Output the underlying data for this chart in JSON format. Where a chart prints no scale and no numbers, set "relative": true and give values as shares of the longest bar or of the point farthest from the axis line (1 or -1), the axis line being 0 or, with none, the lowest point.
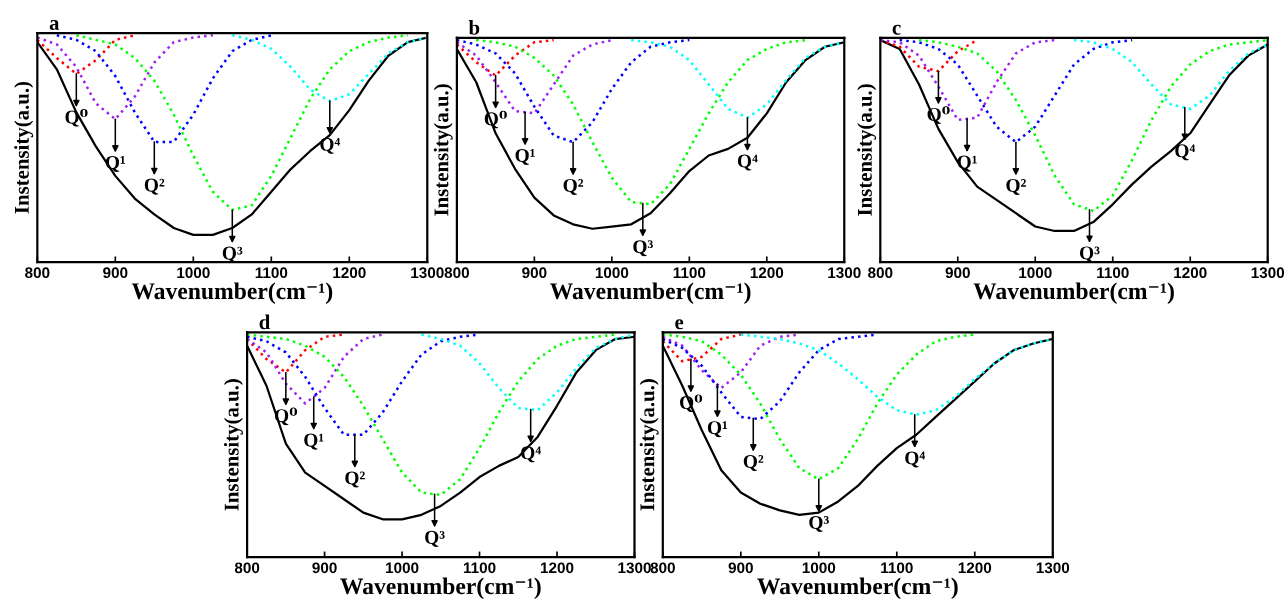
{
  "chart_data": [
    {
      "type": "line",
      "relative": true,
      "title": "a",
      "xlabel": "Wavenumber(cm⁻¹)",
      "ylabel": "Instensity(a.u.)",
      "xlim": [
        800,
        1300
      ],
      "xticks": [
        800,
        900,
        1000,
        1100,
        1200,
        1300
      ],
      "x": [
        800,
        825,
        850,
        875,
        900,
        925,
        950,
        975,
        1000,
        1025,
        1050,
        1075,
        1100,
        1125,
        1150,
        1175,
        1200,
        1225,
        1250,
        1275,
        1300
      ],
      "series": [
        {
          "color": "#000000",
          "line_style": "solid",
          "values": [
            0.97,
            0.85,
            0.66,
            0.51,
            0.38,
            0.28,
            0.21,
            0.15,
            0.12,
            0.12,
            0.15,
            0.21,
            0.31,
            0.41,
            0.49,
            0.56,
            0.67,
            0.8,
            0.91,
            0.97,
            0.99
          ]
        },
        {
          "color": "#ff0000",
          "line_style": "dotted",
          "values": [
            0.98,
            0.9,
            0.83,
            0.89,
            0.98,
            1.0,
            null,
            null,
            null,
            null,
            null,
            null,
            null,
            null,
            null,
            null,
            null,
            null,
            null,
            null,
            null
          ]
        },
        {
          "color": "#a020f0",
          "line_style": "dotted",
          "values": [
            0.99,
            0.96,
            0.86,
            0.7,
            0.63,
            0.73,
            0.88,
            0.97,
            0.99,
            1.0,
            null,
            null,
            null,
            null,
            null,
            null,
            null,
            null,
            null,
            null,
            null
          ]
        },
        {
          "color": "#0000ff",
          "line_style": "dotted",
          "values": [
            null,
            1.0,
            0.98,
            0.93,
            0.82,
            0.66,
            0.53,
            0.53,
            0.65,
            0.81,
            0.93,
            0.98,
            1.0,
            null,
            null,
            null,
            null,
            null,
            null,
            null,
            null
          ]
        },
        {
          "color": "#00ff00",
          "line_style": "dotted",
          "values": [
            null,
            null,
            1.0,
            0.98,
            0.96,
            0.9,
            0.8,
            0.65,
            0.47,
            0.31,
            0.23,
            0.25,
            0.38,
            0.55,
            0.72,
            0.85,
            0.93,
            0.97,
            0.99,
            1.0,
            null
          ]
        },
        {
          "color": "#00ffff",
          "line_style": "dotted",
          "values": [
            null,
            null,
            null,
            null,
            null,
            null,
            null,
            null,
            null,
            null,
            1.0,
            0.98,
            0.94,
            0.86,
            0.76,
            0.71,
            0.74,
            0.83,
            0.92,
            0.97,
            0.99
          ]
        }
      ],
      "annotations": [
        {
          "text": "Q⁰",
          "x": 850,
          "y": 0.83
        },
        {
          "text": "Q¹",
          "x": 900,
          "y": 0.63
        },
        {
          "text": "Q²",
          "x": 950,
          "y": 0.53
        },
        {
          "text": "Q³",
          "x": 1050,
          "y": 0.23
        },
        {
          "text": "Q⁴",
          "x": 1175,
          "y": 0.71
        }
      ]
    },
    {
      "type": "line",
      "relative": true,
      "title": "b",
      "xlabel": "Wavenumber(cm⁻¹)",
      "ylabel": "Instensity(a.u.)",
      "xlim": [
        800,
        1300
      ],
      "xticks": [
        800,
        900,
        1000,
        1100,
        1200,
        1300
      ],
      "x": [
        800,
        825,
        850,
        875,
        900,
        925,
        950,
        975,
        1000,
        1025,
        1050,
        1075,
        1100,
        1125,
        1150,
        1175,
        1200,
        1225,
        1250,
        1275,
        1300
      ],
      "series": [
        {
          "color": "#000000",
          "line_style": "solid",
          "values": [
            0.96,
            0.81,
            0.58,
            0.42,
            0.29,
            0.21,
            0.17,
            0.15,
            0.16,
            0.17,
            0.22,
            0.31,
            0.41,
            0.48,
            0.51,
            0.56,
            0.67,
            0.81,
            0.91,
            0.97,
            0.99
          ]
        },
        {
          "color": "#ff0000",
          "line_style": "dotted",
          "values": [
            0.98,
            0.9,
            0.84,
            0.93,
            0.99,
            1.0,
            null,
            null,
            null,
            null,
            null,
            null,
            null,
            null,
            null,
            null,
            null,
            null,
            null,
            null,
            null
          ]
        },
        {
          "color": "#a020f0",
          "line_style": "dotted",
          "values": [
            0.99,
            0.93,
            0.81,
            0.68,
            0.67,
            0.8,
            0.93,
            0.98,
            1.0,
            null,
            null,
            null,
            null,
            null,
            null,
            null,
            null,
            null,
            null,
            null,
            null
          ]
        },
        {
          "color": "#0000ff",
          "line_style": "dotted",
          "values": [
            1.0,
            0.98,
            0.94,
            0.85,
            0.7,
            0.57,
            0.54,
            0.63,
            0.78,
            0.9,
            0.97,
            0.99,
            1.0,
            null,
            null,
            null,
            null,
            null,
            null,
            null,
            null
          ]
        },
        {
          "color": "#00ff00",
          "line_style": "dotted",
          "values": [
            null,
            1.0,
            0.99,
            0.97,
            0.92,
            0.84,
            0.71,
            0.54,
            0.38,
            0.27,
            0.26,
            0.35,
            0.51,
            0.67,
            0.81,
            0.91,
            0.96,
            0.99,
            1.0,
            null,
            null
          ]
        },
        {
          "color": "#00ffff",
          "line_style": "dotted",
          "values": [
            null,
            null,
            null,
            null,
            null,
            null,
            null,
            null,
            null,
            1.0,
            0.99,
            0.97,
            0.91,
            0.8,
            0.69,
            0.65,
            0.71,
            0.82,
            0.92,
            0.97,
            0.99
          ]
        }
      ],
      "annotations": [
        {
          "text": "Q⁰",
          "x": 850,
          "y": 0.84
        },
        {
          "text": "Q¹",
          "x": 888,
          "y": 0.675
        },
        {
          "text": "Q²",
          "x": 950,
          "y": 0.54
        },
        {
          "text": "Q³",
          "x": 1040,
          "y": 0.264
        },
        {
          "text": "Q⁴",
          "x": 1175,
          "y": 0.65
        }
      ]
    },
    {
      "type": "line",
      "relative": true,
      "title": "c",
      "xlabel": "Wavenumber(cm⁻¹)",
      "ylabel": "Instensity(a.u.)",
      "xlim": [
        800,
        1300
      ],
      "xticks": [
        800,
        900,
        1000,
        1100,
        1200,
        1300
      ],
      "x": [
        800,
        825,
        850,
        875,
        900,
        925,
        950,
        975,
        1000,
        1025,
        1050,
        1075,
        1100,
        1125,
        1150,
        1175,
        1200,
        1225,
        1250,
        1275,
        1300
      ],
      "series": [
        {
          "color": "#000000",
          "line_style": "solid",
          "values": [
            1.0,
            0.96,
            0.8,
            0.6,
            0.45,
            0.34,
            0.28,
            0.22,
            0.16,
            0.14,
            0.14,
            0.18,
            0.26,
            0.35,
            0.43,
            0.5,
            0.58,
            0.71,
            0.84,
            0.93,
            0.98
          ]
        },
        {
          "color": "#ff0000",
          "line_style": "dotted",
          "values": [
            1.0,
            0.97,
            0.88,
            0.86,
            0.95,
            1.0,
            null,
            null,
            null,
            null,
            null,
            null,
            null,
            null,
            null,
            null,
            null,
            null,
            null,
            null,
            null
          ]
        },
        {
          "color": "#a020f0",
          "line_style": "dotted",
          "values": [
            1.0,
            0.99,
            0.93,
            0.79,
            0.64,
            0.65,
            0.81,
            0.94,
            0.99,
            1.0,
            null,
            null,
            null,
            null,
            null,
            null,
            null,
            null,
            null,
            null,
            null
          ]
        },
        {
          "color": "#0000ff",
          "line_style": "dotted",
          "values": [
            null,
            1.0,
            0.99,
            0.96,
            0.89,
            0.75,
            0.61,
            0.54,
            0.61,
            0.75,
            0.89,
            0.96,
            0.99,
            1.0,
            null,
            null,
            null,
            null,
            null,
            null,
            null
          ]
        },
        {
          "color": "#00ff00",
          "line_style": "dotted",
          "values": [
            null,
            null,
            1.0,
            0.99,
            0.97,
            0.94,
            0.86,
            0.73,
            0.57,
            0.39,
            0.26,
            0.23,
            0.3,
            0.46,
            0.64,
            0.79,
            0.89,
            0.95,
            0.98,
            0.99,
            1.0
          ]
        },
        {
          "color": "#00ffff",
          "line_style": "dotted",
          "values": [
            null,
            null,
            null,
            null,
            null,
            null,
            null,
            null,
            null,
            null,
            1.0,
            0.99,
            0.96,
            0.9,
            0.8,
            0.71,
            0.69,
            0.75,
            0.86,
            0.94,
            0.98
          ]
        }
      ],
      "annotations": [
        {
          "text": "Q⁰",
          "x": 875,
          "y": 0.86
        },
        {
          "text": "Q¹",
          "x": 912,
          "y": 0.645
        },
        {
          "text": "Q²",
          "x": 975,
          "y": 0.54
        },
        {
          "text": "Q³",
          "x": 1070,
          "y": 0.236
        },
        {
          "text": "Q⁴",
          "x": 1193,
          "y": 0.696
        }
      ]
    },
    {
      "type": "line",
      "relative": true,
      "title": "d",
      "xlabel": "Wavenumber(cm⁻¹)",
      "ylabel": "Instensity(a.u.)",
      "xlim": [
        800,
        1300
      ],
      "xticks": [
        800,
        900,
        1000,
        1100,
        1200,
        1300
      ],
      "x": [
        800,
        825,
        850,
        875,
        900,
        925,
        950,
        975,
        1000,
        1025,
        1050,
        1075,
        1100,
        1125,
        1150,
        1175,
        1200,
        1225,
        1250,
        1275,
        1300
      ],
      "series": [
        {
          "color": "#000000",
          "line_style": "solid",
          "values": [
            0.95,
            0.77,
            0.51,
            0.38,
            0.32,
            0.26,
            0.2,
            0.17,
            0.17,
            0.19,
            0.23,
            0.29,
            0.36,
            0.41,
            0.45,
            0.54,
            0.68,
            0.83,
            0.93,
            0.98,
            0.99
          ]
        },
        {
          "color": "#ff0000",
          "line_style": "dotted",
          "values": [
            0.98,
            0.89,
            0.83,
            0.93,
            0.99,
            1.0,
            null,
            null,
            null,
            null,
            null,
            null,
            null,
            null,
            null,
            null,
            null,
            null,
            null,
            null,
            null
          ]
        },
        {
          "color": "#a020f0",
          "line_style": "dotted",
          "values": [
            0.98,
            0.92,
            0.78,
            0.69,
            0.76,
            0.9,
            0.98,
            1.0,
            null,
            null,
            null,
            null,
            null,
            null,
            null,
            null,
            null,
            null,
            null,
            null,
            null
          ]
        },
        {
          "color": "#0000ff",
          "line_style": "dotted",
          "values": [
            0.99,
            0.97,
            0.92,
            0.81,
            0.67,
            0.55,
            0.55,
            0.65,
            0.79,
            0.91,
            0.97,
            0.99,
            1.0,
            null,
            null,
            null,
            null,
            null,
            null,
            null,
            null
          ]
        },
        {
          "color": "#00ff00",
          "line_style": "dotted",
          "values": [
            1.0,
            0.99,
            0.98,
            0.95,
            0.9,
            0.81,
            0.68,
            0.53,
            0.38,
            0.29,
            0.28,
            0.35,
            0.49,
            0.65,
            0.79,
            0.89,
            0.95,
            0.98,
            0.99,
            1.0,
            null
          ]
        },
        {
          "color": "#00ffff",
          "line_style": "dotted",
          "values": [
            null,
            null,
            null,
            null,
            null,
            null,
            null,
            null,
            null,
            1.0,
            0.98,
            0.95,
            0.87,
            0.76,
            0.67,
            0.66,
            0.74,
            0.85,
            0.94,
            0.98,
            1.0
          ]
        }
      ],
      "annotations": [
        {
          "text": "Q⁰",
          "x": 850,
          "y": 0.83
        },
        {
          "text": "Q¹",
          "x": 886,
          "y": 0.72
        },
        {
          "text": "Q²",
          "x": 939,
          "y": 0.55
        },
        {
          "text": "Q³",
          "x": 1042,
          "y": 0.283
        },
        {
          "text": "Q⁴",
          "x": 1166,
          "y": 0.663
        }
      ]
    },
    {
      "type": "line",
      "relative": true,
      "title": "e",
      "xlabel": "Wavenumber(cm⁻¹)",
      "ylabel": "Instensity(a.u.)",
      "xlim": [
        800,
        1300
      ],
      "xticks": [
        800,
        900,
        1000,
        1100,
        1200,
        1300
      ],
      "x": [
        800,
        825,
        850,
        875,
        900,
        925,
        950,
        975,
        1000,
        1025,
        1050,
        1075,
        1100,
        1125,
        1150,
        1175,
        1200,
        1225,
        1250,
        1275,
        1300
      ],
      "series": [
        {
          "color": "#000000",
          "line_style": "solid",
          "values": [
            0.95,
            0.77,
            0.57,
            0.39,
            0.29,
            0.24,
            0.21,
            0.19,
            0.2,
            0.25,
            0.32,
            0.41,
            0.49,
            0.55,
            0.63,
            0.71,
            0.79,
            0.87,
            0.93,
            0.96,
            0.98
          ]
        },
        {
          "color": "#ff0000",
          "line_style": "dotted",
          "values": [
            0.97,
            0.88,
            0.9,
            0.98,
            1.0,
            null,
            null,
            null,
            null,
            null,
            null,
            null,
            null,
            null,
            null,
            null,
            null,
            null,
            null,
            null,
            null
          ]
        },
        {
          "color": "#a020f0",
          "line_style": "dotted",
          "values": [
            0.99,
            0.95,
            0.84,
            0.76,
            0.83,
            0.95,
            0.99,
            1.0,
            null,
            null,
            null,
            null,
            null,
            null,
            null,
            null,
            null,
            null,
            null,
            null,
            null
          ]
        },
        {
          "color": "#0000ff",
          "line_style": "dotted",
          "values": [
            0.98,
            0.94,
            0.86,
            0.74,
            0.63,
            0.62,
            0.7,
            0.83,
            0.93,
            0.98,
            0.99,
            1.0,
            null,
            null,
            null,
            null,
            null,
            null,
            null,
            null,
            null
          ]
        },
        {
          "color": "#00ff00",
          "line_style": "dotted",
          "values": [
            1.0,
            0.99,
            0.97,
            0.91,
            0.82,
            0.69,
            0.53,
            0.4,
            0.35,
            0.4,
            0.53,
            0.69,
            0.82,
            0.91,
            0.97,
            0.99,
            1.0,
            null,
            null,
            null,
            null
          ]
        },
        {
          "color": "#00ffff",
          "line_style": "dotted",
          "values": [
            null,
            null,
            null,
            null,
            1.0,
            0.99,
            0.98,
            0.96,
            0.93,
            0.87,
            0.8,
            0.72,
            0.66,
            0.64,
            0.66,
            0.72,
            0.8,
            0.87,
            0.93,
            0.96,
            0.98
          ]
        }
      ],
      "annotations": [
        {
          "text": "Q⁰",
          "x": 836,
          "y": 0.889
        },
        {
          "text": "Q¹",
          "x": 870,
          "y": 0.776
        },
        {
          "text": "Q²",
          "x": 916,
          "y": 0.624
        },
        {
          "text": "Q³",
          "x": 1000,
          "y": 0.35
        },
        {
          "text": "Q⁴",
          "x": 1123,
          "y": 0.64
        }
      ]
    }
  ]
}
